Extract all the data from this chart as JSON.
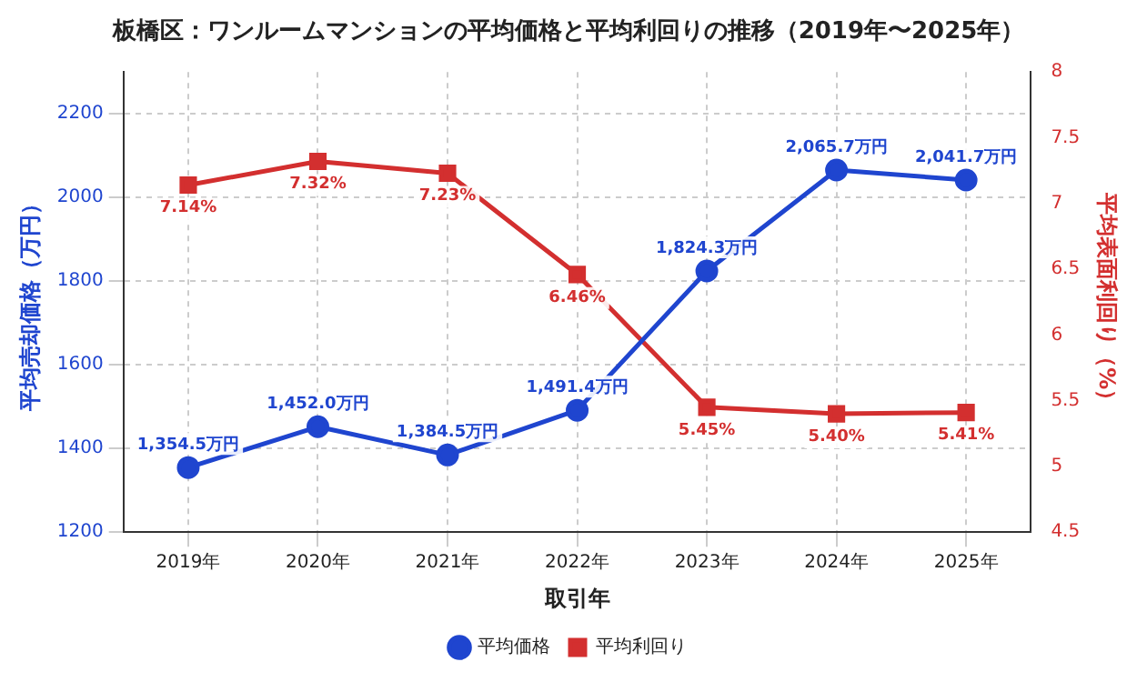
{
  "chart_data": {
    "type": "line",
    "title": "板橋区：ワンルームマンションの平均価格と平均利回りの推移（2019年〜2025年）",
    "xlabel": "取引年",
    "ylabel": "平均売却価格（万円）",
    "y2label": "平均表面利回り（%）",
    "categories": [
      "2019年",
      "2020年",
      "2021年",
      "2022年",
      "2023年",
      "2024年",
      "2025年"
    ],
    "series": [
      {
        "name": "平均価格",
        "color": "#1f45cf",
        "marker": "circle",
        "values": [
          1354.5,
          1452.0,
          1384.5,
          1491.4,
          1824.3,
          2065.7,
          2041.7
        ],
        "value_labels": [
          "1,354.5万円",
          "1,452.0万円",
          "1,384.5万円",
          "1,491.4万円",
          "1,824.3万円",
          "2,065.7万円",
          "2,041.7万円"
        ]
      },
      {
        "name": "平均利回り",
        "color": "#d32f2f",
        "marker": "square",
        "axis": "y2",
        "values": [
          7.14,
          7.32,
          7.23,
          6.46,
          5.45,
          5.4,
          5.41
        ],
        "value_labels": [
          "7.14%",
          "7.32%",
          "7.23%",
          "6.46%",
          "5.45%",
          "5.40%",
          "5.41%"
        ]
      }
    ],
    "ylim": [
      1200,
      2300
    ],
    "yticks": [
      1200,
      1400,
      1600,
      1800,
      2000,
      2200
    ],
    "y2lim": [
      4.5,
      8.0
    ],
    "y2ticks": [
      4.5,
      5.0,
      5.5,
      6.0,
      6.5,
      7.0,
      7.5,
      8.0
    ],
    "grid": true,
    "legend": "bottom",
    "line_style": "solid"
  }
}
